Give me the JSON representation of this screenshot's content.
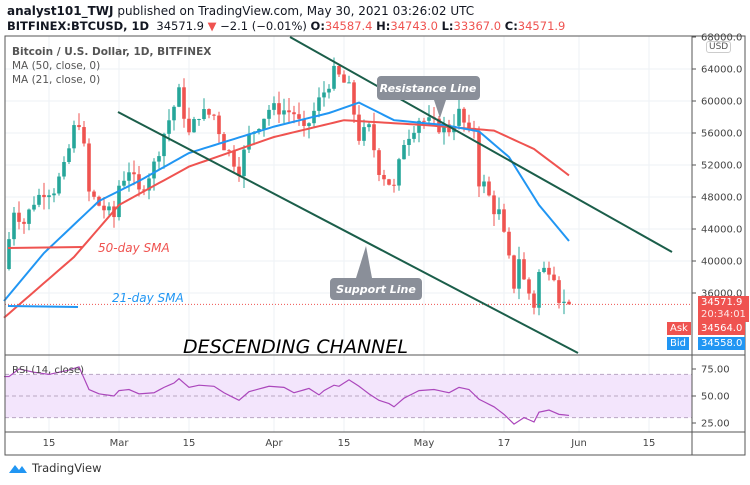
{
  "header": {
    "author": "analyst101_TWJ",
    "published": "published on TradingView.com, May 30, 2021 03:26:02 UTC",
    "symbol": "BITFINEX:BTCUSD, 1D",
    "last": "34571.9",
    "change": "−2.1 (−0.01%)",
    "open_label": "O:",
    "open": "34587.4",
    "high_label": "H:",
    "high": "34743.0",
    "low_label": "L:",
    "low": "33367.0",
    "close_label": "C:",
    "close": "34571.9"
  },
  "legend": {
    "title": "Bitcoin / U.S. Dollar, 1D, BITFINEX",
    "ma50": "MA (50, close, 0)",
    "ma21": "MA (21, close, 0)"
  },
  "price_axis": {
    "currency": "USD",
    "ticks": [
      "68000.0",
      "64000.0",
      "60000.0",
      "56000.0",
      "52000.0",
      "48000.0",
      "44000.0",
      "40000.0",
      "36000.0"
    ],
    "last_price": "34571.9",
    "countdown": "20:34:01",
    "ask_label": "Ask",
    "ask": "34564.0",
    "bid_label": "Bid",
    "bid": "34558.0"
  },
  "rsi": {
    "label": "RSI (14, close)",
    "ticks": [
      "75.00",
      "50.00",
      "25.00"
    ]
  },
  "time_axis": [
    "15",
    "Mar",
    "15",
    "Apr",
    "15",
    "May",
    "17",
    "Jun",
    "15"
  ],
  "annotations": {
    "resistance": "Resistance Line",
    "support": "Support Line",
    "sma50": "50-day SMA",
    "sma21": "21-day SMA",
    "channel": "DESCENDING CHANNEL"
  },
  "footer": {
    "brand": "TradingView"
  },
  "colors": {
    "up": "#26a69a",
    "down": "#ef5350",
    "ma50": "#ef5350",
    "ma21": "#2196f3",
    "rsi": "#ab47bc",
    "trend": "#1b5e4a",
    "bid": "#2196f3"
  },
  "chart_data": {
    "type": "candlestick",
    "note_units": "USD",
    "closes_keypoints": [
      [
        "2021-02-06",
        39000
      ],
      [
        "2021-02-08",
        46500
      ],
      [
        "2021-02-10",
        44800
      ],
      [
        "2021-02-12",
        47500
      ],
      [
        "2021-02-14",
        48800
      ],
      [
        "2021-02-16",
        49000
      ],
      [
        "2021-02-18",
        51500
      ],
      [
        "2021-02-20",
        56500
      ],
      [
        "2021-02-21",
        57500
      ],
      [
        "2021-02-22",
        54000
      ],
      [
        "2021-02-23",
        48500
      ],
      [
        "2021-02-25",
        47000
      ],
      [
        "2021-02-28",
        45500
      ],
      [
        "2021-03-01",
        49500
      ],
      [
        "2021-03-03",
        51500
      ],
      [
        "2021-03-05",
        48500
      ],
      [
        "2021-03-08",
        52000
      ],
      [
        "2021-03-10",
        56000
      ],
      [
        "2021-03-13",
        61000
      ],
      [
        "2021-03-15",
        55800
      ],
      [
        "2021-03-17",
        58500
      ],
      [
        "2021-03-20",
        58200
      ],
      [
        "2021-03-22",
        54500
      ],
      [
        "2021-03-25",
        51500
      ],
      [
        "2021-03-27",
        55500
      ],
      [
        "2021-03-31",
        59000
      ],
      [
        "2021-04-02",
        59000
      ],
      [
        "2021-04-05",
        58500
      ],
      [
        "2021-04-07",
        56000
      ],
      [
        "2021-04-10",
        60000
      ],
      [
        "2021-04-13",
        63500
      ],
      [
        "2021-04-14",
        63000
      ],
      [
        "2021-04-16",
        61500
      ],
      [
        "2021-04-18",
        55500
      ],
      [
        "2021-04-20",
        56500
      ],
      [
        "2021-04-22",
        51500
      ],
      [
        "2021-04-25",
        49000
      ],
      [
        "2021-04-27",
        55000
      ],
      [
        "2021-04-30",
        57800
      ],
      [
        "2021-05-03",
        57000
      ],
      [
        "2021-05-06",
        56500
      ],
      [
        "2021-05-08",
        58500
      ],
      [
        "2021-05-10",
        55800
      ],
      [
        "2021-05-11",
        56500
      ],
      [
        "2021-05-12",
        50000
      ],
      [
        "2021-05-13",
        49500
      ],
      [
        "2021-05-15",
        46500
      ],
      [
        "2021-05-16",
        46000
      ],
      [
        "2021-05-17",
        43000
      ],
      [
        "2021-05-19",
        37000
      ],
      [
        "2021-05-20",
        40500
      ],
      [
        "2021-05-21",
        37500
      ],
      [
        "2021-05-23",
        34500
      ],
      [
        "2021-05-24",
        38500
      ],
      [
        "2021-05-26",
        39200
      ],
      [
        "2021-05-27",
        38500
      ],
      [
        "2021-05-28",
        35500
      ],
      [
        "2021-05-29",
        34600
      ],
      [
        "2021-05-30",
        34571.9
      ]
    ],
    "ma50_keypoints": [
      [
        "2021-02-06",
        32900
      ],
      [
        "2021-02-20",
        40500
      ],
      [
        "2021-03-01",
        47000
      ],
      [
        "2021-03-15",
        51800
      ],
      [
        "2021-04-01",
        55500
      ],
      [
        "2021-04-15",
        57600
      ],
      [
        "2021-05-01",
        57000
      ],
      [
        "2021-05-15",
        56300
      ],
      [
        "2021-05-23",
        54000
      ],
      [
        "2021-05-30",
        50700
      ]
    ],
    "ma21_keypoints": [
      [
        "2021-02-06",
        35000
      ],
      [
        "2021-02-14",
        41000
      ],
      [
        "2021-02-25",
        47500
      ],
      [
        "2021-03-05",
        50000
      ],
      [
        "2021-03-15",
        53500
      ],
      [
        "2021-04-01",
        56800
      ],
      [
        "2021-04-12",
        58500
      ],
      [
        "2021-04-18",
        59800
      ],
      [
        "2021-04-25",
        57600
      ],
      [
        "2021-05-05",
        57000
      ],
      [
        "2021-05-12",
        56200
      ],
      [
        "2021-05-18",
        53000
      ],
      [
        "2021-05-24",
        47000
      ],
      [
        "2021-05-30",
        42500
      ]
    ],
    "rsi_keypoints": [
      [
        "2021-02-06",
        68
      ],
      [
        "2021-02-07",
        68
      ],
      [
        "2021-02-09",
        75
      ],
      [
        "2021-02-12",
        72
      ],
      [
        "2021-02-15",
        70
      ],
      [
        "2021-02-19",
        74
      ],
      [
        "2021-02-21",
        77
      ],
      [
        "2021-02-23",
        56
      ],
      [
        "2021-02-25",
        52
      ],
      [
        "2021-02-28",
        50
      ],
      [
        "2021-03-01",
        55
      ],
      [
        "2021-03-03",
        56
      ],
      [
        "2021-03-05",
        52
      ],
      [
        "2021-03-08",
        53
      ],
      [
        "2021-03-10",
        58
      ],
      [
        "2021-03-12",
        62
      ],
      [
        "2021-03-13",
        66
      ],
      [
        "2021-03-15",
        58
      ],
      [
        "2021-03-17",
        60
      ],
      [
        "2021-03-20",
        59
      ],
      [
        "2021-03-22",
        53
      ],
      [
        "2021-03-25",
        46
      ],
      [
        "2021-03-27",
        54
      ],
      [
        "2021-03-31",
        59
      ],
      [
        "2021-04-03",
        58
      ],
      [
        "2021-04-05",
        53
      ],
      [
        "2021-04-08",
        57
      ],
      [
        "2021-04-10",
        51
      ],
      [
        "2021-04-11",
        55
      ],
      [
        "2021-04-13",
        60
      ],
      [
        "2021-04-14",
        59
      ],
      [
        "2021-04-16",
        65
      ],
      [
        "2021-04-18",
        59
      ],
      [
        "2021-04-20",
        52
      ],
      [
        "2021-04-22",
        46
      ],
      [
        "2021-04-24",
        43
      ],
      [
        "2021-04-25",
        40
      ],
      [
        "2021-04-27",
        48
      ],
      [
        "2021-04-30",
        55
      ],
      [
        "2021-05-03",
        56
      ],
      [
        "2021-05-06",
        53
      ],
      [
        "2021-05-08",
        58
      ],
      [
        "2021-05-10",
        56
      ],
      [
        "2021-05-12",
        47
      ],
      [
        "2021-05-15",
        40
      ],
      [
        "2021-05-17",
        33
      ],
      [
        "2021-05-19",
        24
      ],
      [
        "2021-05-21",
        30
      ],
      [
        "2021-05-23",
        26
      ],
      [
        "2021-05-24",
        35
      ],
      [
        "2021-05-26",
        37
      ],
      [
        "2021-05-28",
        33
      ],
      [
        "2021-05-30",
        32
      ]
    ],
    "price_range": [
      32000,
      68000
    ],
    "rsi_band": [
      30,
      70
    ],
    "x_range": [
      "2021-02-06",
      "2021-06-29"
    ]
  }
}
